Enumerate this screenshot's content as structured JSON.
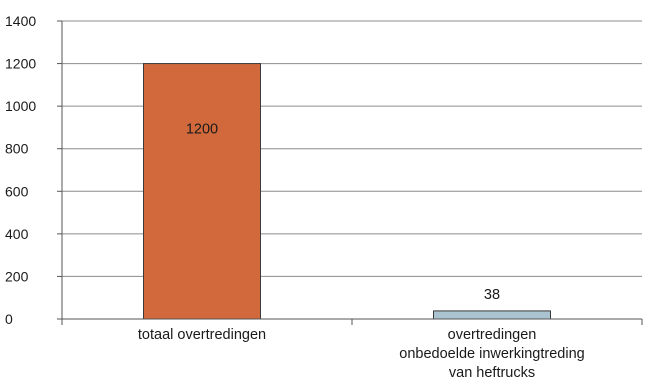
{
  "chart_data": {
    "type": "bar",
    "categories": [
      [
        "totaal overtredingen"
      ],
      [
        "overtredingen",
        "onbedoelde inwerkingtreding",
        "van heftrucks"
      ]
    ],
    "values": [
      1200,
      38
    ],
    "data_labels": [
      "1200",
      "38"
    ],
    "colors": [
      "#D2693C",
      "#A9C3D0"
    ],
    "ylim": [
      0,
      1400
    ],
    "yticks": [
      0,
      200,
      400,
      600,
      800,
      1000,
      1200,
      1400
    ],
    "ytick_labels": [
      "0",
      "200",
      "400",
      "600",
      "800",
      "1000",
      "1200",
      "1400"
    ],
    "grid": true,
    "title": "",
    "xlabel": "",
    "ylabel": ""
  }
}
